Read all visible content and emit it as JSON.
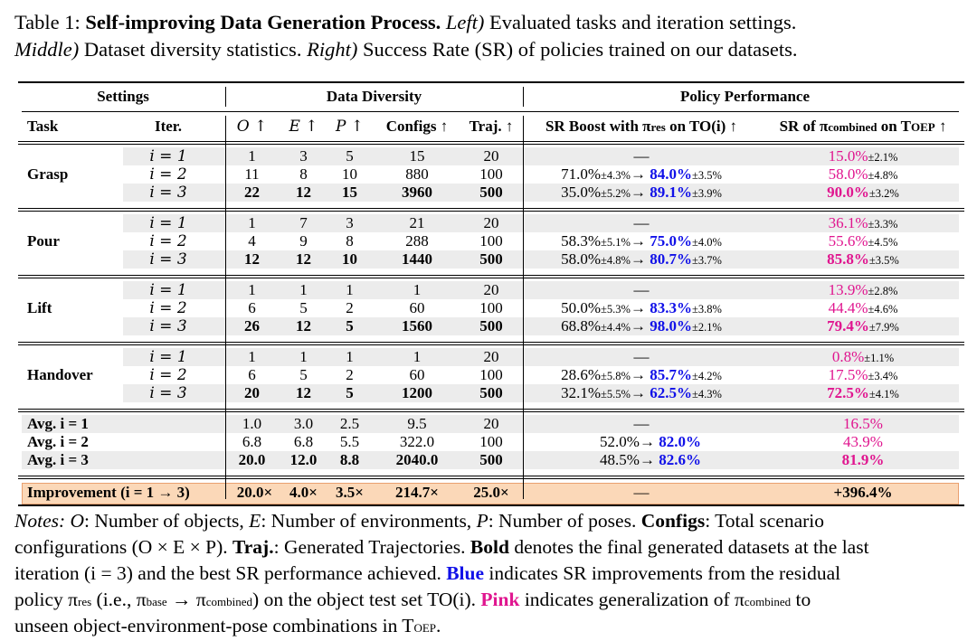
{
  "caption": {
    "line1_prefix": "Table 1: ",
    "title": "Self-improving Data Generation Process.",
    "left_label": "Left)",
    "left_text": " Evaluated tasks and iteration settings.",
    "middle_label": "Middle)",
    "middle_text": " Dataset diversity statistics. ",
    "right_label": "Right)",
    "right_text": " Success Rate (SR) of policies trained on our datasets."
  },
  "headers": {
    "group_settings": "Settings",
    "group_diversity": "Data Diversity",
    "group_policy": "Policy Performance",
    "task": "Task",
    "iter": "Iter.",
    "o": "O ↑",
    "e": "E ↑",
    "p": "P ↑",
    "configs": "Configs ↑",
    "traj": "Traj. ↑",
    "sr_boost_a": "SR Boost with π",
    "sr_boost_sub": "res",
    "sr_boost_b": " on TO(i) ↑",
    "sr_comb_a": "SR of π",
    "sr_comb_sub": "combined",
    "sr_comb_b": " on T",
    "sr_comb_sub2": "OEP",
    "sr_comb_c": " ↑"
  },
  "tasks": [
    {
      "name": "Grasp",
      "rows": [
        {
          "iter": "i = 1",
          "o": "1",
          "e": "3",
          "p": "5",
          "configs": "15",
          "traj": "20",
          "boost_from": "—",
          "boost_from_pm": "",
          "boost_to": "",
          "boost_to_pm": "",
          "comb": "15.0%",
          "comb_pm": "±2.1%"
        },
        {
          "iter": "i = 2",
          "o": "11",
          "e": "8",
          "p": "10",
          "configs": "880",
          "traj": "100",
          "boost_from": "71.0%",
          "boost_from_pm": "±4.3%",
          "boost_to": "84.0%",
          "boost_to_pm": "±3.5%",
          "comb": "58.0%",
          "comb_pm": "±4.8%"
        },
        {
          "iter": "i = 3",
          "o": "22",
          "e": "12",
          "p": "15",
          "configs": "3960",
          "traj": "500",
          "boost_from": "35.0%",
          "boost_from_pm": "±5.2%",
          "boost_to": "89.1%",
          "boost_to_pm": "±3.9%",
          "comb": "90.0%",
          "comb_pm": "±3.2%"
        }
      ]
    },
    {
      "name": "Pour",
      "rows": [
        {
          "iter": "i = 1",
          "o": "1",
          "e": "7",
          "p": "3",
          "configs": "21",
          "traj": "20",
          "boost_from": "—",
          "boost_from_pm": "",
          "boost_to": "",
          "boost_to_pm": "",
          "comb": "36.1%",
          "comb_pm": "±3.3%"
        },
        {
          "iter": "i = 2",
          "o": "4",
          "e": "9",
          "p": "8",
          "configs": "288",
          "traj": "100",
          "boost_from": "58.3%",
          "boost_from_pm": "±5.1%",
          "boost_to": "75.0%",
          "boost_to_pm": "±4.0%",
          "comb": "55.6%",
          "comb_pm": "±4.5%"
        },
        {
          "iter": "i = 3",
          "o": "12",
          "e": "12",
          "p": "10",
          "configs": "1440",
          "traj": "500",
          "boost_from": "58.0%",
          "boost_from_pm": "±4.8%",
          "boost_to": "80.7%",
          "boost_to_pm": "±3.7%",
          "comb": "85.8%",
          "comb_pm": "±3.5%"
        }
      ]
    },
    {
      "name": "Lift",
      "rows": [
        {
          "iter": "i = 1",
          "o": "1",
          "e": "1",
          "p": "1",
          "configs": "1",
          "traj": "20",
          "boost_from": "—",
          "boost_from_pm": "",
          "boost_to": "",
          "boost_to_pm": "",
          "comb": "13.9%",
          "comb_pm": "±2.8%"
        },
        {
          "iter": "i = 2",
          "o": "6",
          "e": "5",
          "p": "2",
          "configs": "60",
          "traj": "100",
          "boost_from": "50.0%",
          "boost_from_pm": "±5.3%",
          "boost_to": "83.3%",
          "boost_to_pm": "±3.8%",
          "comb": "44.4%",
          "comb_pm": "±4.6%"
        },
        {
          "iter": "i = 3",
          "o": "26",
          "e": "12",
          "p": "5",
          "configs": "1560",
          "traj": "500",
          "boost_from": "68.8%",
          "boost_from_pm": "±4.4%",
          "boost_to": "98.0%",
          "boost_to_pm": "±2.1%",
          "comb": "79.4%",
          "comb_pm": "±7.9%"
        }
      ]
    },
    {
      "name": "Handover",
      "rows": [
        {
          "iter": "i = 1",
          "o": "1",
          "e": "1",
          "p": "1",
          "configs": "1",
          "traj": "20",
          "boost_from": "—",
          "boost_from_pm": "",
          "boost_to": "",
          "boost_to_pm": "",
          "comb": "0.8%",
          "comb_pm": "±1.1%"
        },
        {
          "iter": "i = 2",
          "o": "6",
          "e": "5",
          "p": "2",
          "configs": "60",
          "traj": "100",
          "boost_from": "28.6%",
          "boost_from_pm": "±5.8%",
          "boost_to": "85.7%",
          "boost_to_pm": "±4.2%",
          "comb": "17.5%",
          "comb_pm": "±3.4%"
        },
        {
          "iter": "i = 3",
          "o": "20",
          "e": "12",
          "p": "5",
          "configs": "1200",
          "traj": "500",
          "boost_from": "32.1%",
          "boost_from_pm": "±5.5%",
          "boost_to": "62.5%",
          "boost_to_pm": "±4.3%",
          "comb": "72.5%",
          "comb_pm": "±4.1%"
        }
      ]
    }
  ],
  "averages": [
    {
      "label": "Avg. i = 1",
      "o": "1.0",
      "e": "3.0",
      "p": "2.5",
      "configs": "9.5",
      "traj": "20",
      "boost_from": "—",
      "boost_to": "",
      "comb": "16.5%"
    },
    {
      "label": "Avg. i = 2",
      "o": "6.8",
      "e": "6.8",
      "p": "5.5",
      "configs": "322.0",
      "traj": "100",
      "boost_from": "52.0%",
      "boost_to": "82.0%",
      "comb": "43.9%"
    },
    {
      "label": "Avg. i = 3",
      "o": "20.0",
      "e": "12.0",
      "p": "8.8",
      "configs": "2040.0",
      "traj": "500",
      "boost_from": "48.5%",
      "boost_to": "82.6%",
      "comb": "81.9%"
    }
  ],
  "improvement": {
    "label": "Improvement (i = 1 → 3)",
    "o": "20.0×",
    "e": "4.0×",
    "p": "3.5×",
    "configs": "214.7×",
    "traj": "25.0×",
    "boost": "—",
    "comb": "+396.4%"
  },
  "notes": {
    "l1_a": "Notes: ",
    "l1_b": "O",
    "l1_c": ": Number of objects, ",
    "l1_d": "E",
    "l1_e": ": Number of environments, ",
    "l1_f": "P",
    "l1_g": ": Number of poses. ",
    "l1_h": "Configs",
    "l1_i": ": Total scenario",
    "l2_a": "configurations (O × E × P). ",
    "l2_b": "Traj.",
    "l2_c": ": Generated Trajectories. ",
    "l2_d": "Bold",
    "l2_e": " denotes the final generated datasets at the last",
    "l3_a": "iteration (i = 3) and the best SR performance achieved. ",
    "l3_b": "Blue",
    "l3_c": " indicates SR improvements from the residual",
    "l4_a": "policy π",
    "l4_sub1": "res",
    "l4_b": " (i.e., π",
    "l4_sub2": "base",
    "l4_c": " → π",
    "l4_sub3": "combined",
    "l4_d": ") on the object test set TO(i). ",
    "l4_e": "Pink",
    "l4_f": " indicates generalization of π",
    "l4_sub4": "combined",
    "l4_g": " to",
    "l5_a": "unseen object-environment-pose combinations in T",
    "l5_sub": "OEP",
    "l5_b": "."
  },
  "colors": {
    "blue": "#1010e8",
    "pink": "#e0158f",
    "band": "#ececec",
    "improvement_bg": "#fbd8b8"
  }
}
